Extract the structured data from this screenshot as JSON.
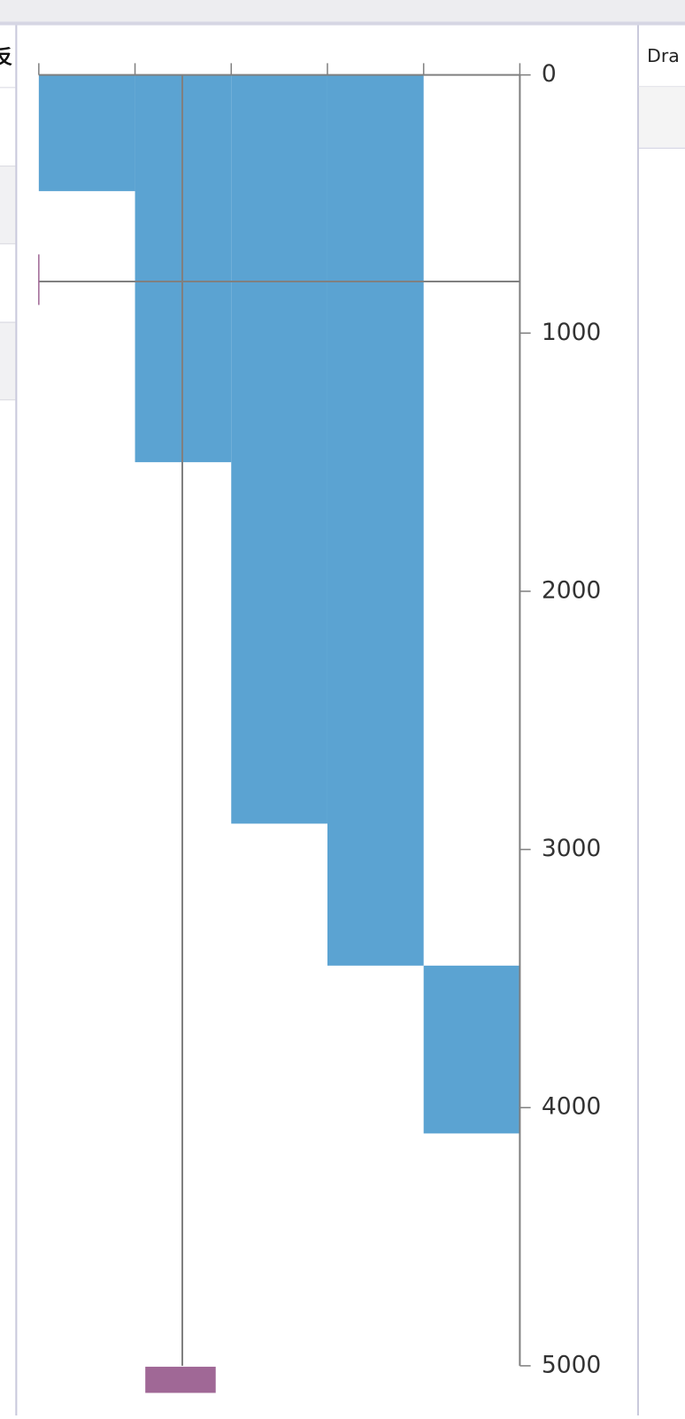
{
  "left_panel": {
    "heading": "反"
  },
  "right_panel": {
    "heading": "Dra"
  },
  "chart_data": {
    "type": "range-column",
    "categories": [
      null,
      null,
      null,
      null,
      null
    ],
    "low": [
      0,
      0,
      0,
      0,
      3450
    ],
    "high": [
      450,
      1500,
      2900,
      3450,
      4100
    ],
    "color": "#5ba3d2",
    "ylim": [
      0,
      5000
    ],
    "yticks": [
      0,
      1000,
      2000,
      3000,
      4000,
      5000
    ],
    "y_inverted": true,
    "crosshair_y": 800
  }
}
